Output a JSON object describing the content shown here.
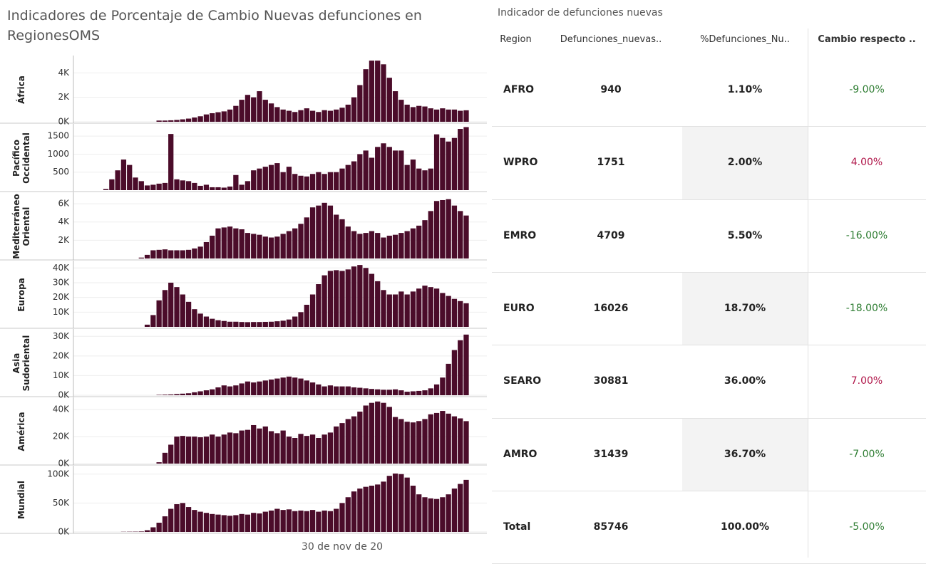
{
  "title": "Indicadores de Porcentaje de Cambio Nuevas defunciones en RegionesOMS",
  "chart_data": [
    {
      "type": "bar",
      "ylabel": "África",
      "color": "#4b0c2a",
      "ylim": [
        0,
        5300
      ],
      "yticks": [
        {
          "value": 0,
          "label": "0K"
        },
        {
          "value": 2000,
          "label": "2K"
        },
        {
          "value": 4000,
          "label": "4K"
        }
      ],
      "values": [
        0,
        0,
        0,
        0,
        0,
        0,
        0,
        0,
        0,
        0,
        0,
        0,
        0,
        0,
        100,
        100,
        120,
        150,
        200,
        260,
        350,
        450,
        600,
        700,
        780,
        850,
        1000,
        1300,
        1800,
        2200,
        2000,
        2500,
        1800,
        1500,
        1200,
        1000,
        900,
        800,
        950,
        1100,
        900,
        800,
        950,
        900,
        1000,
        1150,
        1400,
        2000,
        3000,
        4300,
        5000,
        5000,
        4700,
        3600,
        2500,
        1800,
        1400,
        1200,
        1300,
        1250,
        1100,
        1000,
        1100,
        1000,
        1000,
        900,
        940,
        null,
        null,
        null
      ]
    },
    {
      "type": "bar",
      "ylabel": "Pacífico Occidental",
      "color": "#4b0c2a",
      "ylim": [
        0,
        1800
      ],
      "yticks": [
        500,
        1000,
        1500
      ],
      "values": [
        0,
        0,
        0,
        0,
        0,
        30,
        300,
        550,
        850,
        700,
        350,
        250,
        130,
        150,
        180,
        200,
        1560,
        300,
        270,
        250,
        200,
        120,
        150,
        80,
        80,
        70,
        100,
        420,
        150,
        250,
        550,
        600,
        650,
        700,
        750,
        500,
        650,
        450,
        400,
        380,
        450,
        500,
        450,
        500,
        500,
        600,
        700,
        800,
        1000,
        1100,
        900,
        1200,
        1300,
        1200,
        1100,
        1100,
        700,
        850,
        600,
        550,
        600,
        1550,
        1450,
        1350,
        1450,
        1700,
        1751,
        null,
        null,
        null
      ]
    },
    {
      "type": "bar",
      "ylabel": "Mediterráneo Oriental",
      "color": "#4b0c2a",
      "ylim": [
        0,
        7100
      ],
      "yticks": [
        {
          "value": 2000,
          "label": "2K"
        },
        {
          "value": 4000,
          "label": "4K"
        },
        {
          "value": 6000,
          "label": "6K"
        }
      ],
      "values": [
        0,
        0,
        0,
        0,
        0,
        0,
        0,
        0,
        0,
        0,
        0,
        100,
        400,
        900,
        950,
        1000,
        900,
        900,
        900,
        950,
        1100,
        1300,
        1800,
        2500,
        3300,
        3400,
        3500,
        3300,
        3200,
        2800,
        2700,
        2600,
        2400,
        2300,
        2400,
        2700,
        3000,
        3300,
        3800,
        4500,
        5600,
        5800,
        6100,
        5800,
        4800,
        4300,
        3500,
        3000,
        2700,
        2800,
        3000,
        2800,
        2300,
        2500,
        2600,
        2800,
        3000,
        3300,
        3600,
        4200,
        5200,
        6300,
        6400,
        6500,
        5800,
        5200,
        4709,
        null,
        null,
        null
      ]
    },
    {
      "type": "bar",
      "ylabel": "Europa",
      "color": "#4b0c2a",
      "ylim": [
        0,
        44000
      ],
      "yticks": [
        {
          "value": 10000,
          "label": "10K"
        },
        {
          "value": 20000,
          "label": "20K"
        },
        {
          "value": 30000,
          "label": "30K"
        },
        {
          "value": 40000,
          "label": "40K"
        }
      ],
      "values": [
        0,
        0,
        0,
        0,
        0,
        0,
        0,
        0,
        0,
        0,
        0,
        0,
        1500,
        8000,
        18000,
        25000,
        30000,
        27000,
        22000,
        17000,
        12000,
        9000,
        7000,
        5500,
        4500,
        4000,
        3500,
        3500,
        3300,
        3200,
        3300,
        3300,
        3400,
        3500,
        3800,
        4200,
        5000,
        7000,
        10000,
        15000,
        22000,
        29000,
        35000,
        38000,
        38500,
        38000,
        39000,
        41000,
        42000,
        40000,
        36000,
        31000,
        25000,
        22000,
        22000,
        24000,
        22000,
        24000,
        26000,
        28000,
        27000,
        26000,
        23000,
        21000,
        19000,
        17500,
        16026,
        null,
        null,
        null
      ]
    },
    {
      "type": "bar",
      "ylabel": "Asia Sudoriental",
      "color": "#4b0c2a",
      "ylim": [
        0,
        33000
      ],
      "yticks": [
        {
          "value": 0,
          "label": "0K"
        },
        {
          "value": 10000,
          "label": "10K"
        },
        {
          "value": 20000,
          "label": "20K"
        },
        {
          "value": 30000,
          "label": "30K"
        }
      ],
      "values": [
        0,
        0,
        0,
        0,
        0,
        0,
        0,
        0,
        0,
        0,
        0,
        0,
        0,
        0,
        200,
        300,
        400,
        600,
        800,
        1000,
        1500,
        2000,
        2500,
        3000,
        4000,
        5000,
        4500,
        5000,
        6000,
        7000,
        6500,
        7000,
        7500,
        8000,
        8500,
        9000,
        9500,
        9000,
        8500,
        7500,
        6500,
        5500,
        4500,
        5000,
        4500,
        4500,
        4500,
        4000,
        3800,
        3500,
        3200,
        3000,
        2800,
        2800,
        3000,
        2500,
        1800,
        2000,
        2200,
        2500,
        3500,
        5500,
        9000,
        16000,
        23000,
        28000,
        30881,
        null,
        null,
        null
      ]
    },
    {
      "type": "bar",
      "ylabel": "América",
      "color": "#4b0c2a",
      "ylim": [
        0,
        48000
      ],
      "yticks": [
        {
          "value": 0,
          "label": "0K"
        },
        {
          "value": 20000,
          "label": "20K"
        },
        {
          "value": 40000,
          "label": "40K"
        }
      ],
      "values": [
        0,
        0,
        0,
        0,
        0,
        0,
        0,
        0,
        0,
        0,
        0,
        0,
        0,
        0,
        1000,
        8000,
        14000,
        20000,
        20500,
        20000,
        20000,
        19500,
        20000,
        21500,
        20000,
        21500,
        23000,
        22500,
        24500,
        25000,
        28500,
        26000,
        27500,
        24000,
        22500,
        24500,
        20000,
        19000,
        22000,
        20500,
        21500,
        19000,
        21500,
        23000,
        27500,
        30000,
        33000,
        35000,
        38500,
        43000,
        45000,
        46000,
        45000,
        42000,
        34500,
        33000,
        31000,
        30500,
        31500,
        33000,
        36500,
        37500,
        39000,
        37000,
        35000,
        33500,
        31439,
        null,
        null,
        null
      ]
    },
    {
      "type": "bar",
      "ylabel": "Mundial",
      "color": "#4b0c2a",
      "ylim": [
        0,
        112000
      ],
      "yticks": [
        {
          "value": 0,
          "label": "0K"
        },
        {
          "value": 50000,
          "label": "50K"
        },
        {
          "value": 100000,
          "label": "100K"
        }
      ],
      "categories": [
        null,
        null,
        null,
        null,
        null,
        null,
        null,
        null,
        null,
        null,
        null,
        null,
        null,
        null,
        null,
        null,
        null,
        null,
        null,
        null,
        null,
        null,
        null,
        null,
        null,
        null,
        null,
        null,
        null,
        null,
        null,
        null,
        null,
        null,
        null,
        null,
        null,
        null,
        null,
        null,
        null,
        null,
        null,
        null,
        null,
        "30 de nov de 20",
        null,
        null,
        null,
        null,
        null,
        null,
        null,
        null,
        null,
        null,
        null,
        null,
        null,
        null,
        null,
        null,
        null,
        null,
        null,
        null,
        null,
        null,
        null,
        null
      ],
      "values": [
        0,
        0,
        0,
        0,
        0,
        0,
        0,
        0,
        300,
        400,
        500,
        800,
        3000,
        8000,
        16000,
        27000,
        40000,
        48000,
        50000,
        43000,
        38000,
        35000,
        33000,
        31000,
        30000,
        29000,
        28000,
        29000,
        31000,
        30000,
        33000,
        32000,
        35000,
        37000,
        40000,
        38000,
        39000,
        36000,
        37000,
        36000,
        38000,
        35000,
        37000,
        36000,
        40000,
        50000,
        60000,
        70000,
        75000,
        78000,
        80000,
        82000,
        87000,
        97000,
        101000,
        100000,
        94000,
        80000,
        65000,
        60000,
        58000,
        57000,
        60000,
        65000,
        75000,
        83000,
        90000,
        null,
        null,
        null
      ]
    }
  ],
  "table": {
    "title": "Indicador de defunciones nuevas",
    "headers": [
      "Region",
      "Defunciones_nuevas..",
      "%Defunciones_Nu..",
      "Cambio respecto .."
    ],
    "rows": [
      [
        "AFRO",
        "940",
        "1.10%",
        "-9.00%"
      ],
      [
        "WPRO",
        "1751",
        "2.00%",
        "4.00%"
      ],
      [
        "EMRO",
        "4709",
        "5.50%",
        "-16.00%"
      ],
      [
        "EURO",
        "16026",
        "18.70%",
        "-18.00%"
      ],
      [
        "SEARO",
        "30881",
        "36.00%",
        "7.00%"
      ],
      [
        "AMRO",
        "31439",
        "36.70%",
        "-7.00%"
      ],
      [
        "Total",
        "85746",
        "100.00%",
        "-5.00%"
      ]
    ]
  }
}
